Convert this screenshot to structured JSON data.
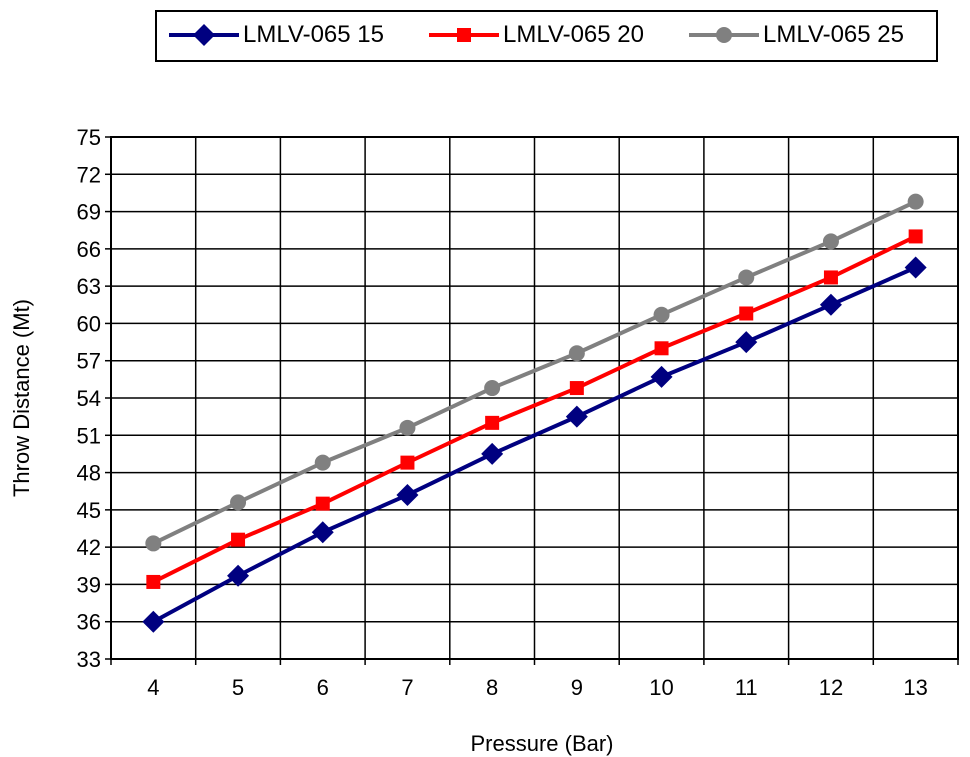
{
  "chart_data": {
    "type": "line",
    "title": "",
    "xlabel": "Pressure (Bar)",
    "ylabel": "Throw Distance (Mt)",
    "x": [
      4,
      5,
      6,
      7,
      8,
      9,
      10,
      11,
      12,
      13
    ],
    "xticks": [
      "4",
      "5",
      "6",
      "7",
      "8",
      "9",
      "10",
      "11",
      "12",
      "13"
    ],
    "ylim": [
      33,
      75
    ],
    "yticks": [
      "33",
      "36",
      "39",
      "42",
      "45",
      "48",
      "51",
      "54",
      "57",
      "60",
      "63",
      "66",
      "69",
      "72",
      "75"
    ],
    "grid": true,
    "legend_position": "top",
    "series": [
      {
        "name": "LMLV-065 15",
        "color": "#000080",
        "marker": "diamond",
        "values": [
          36.0,
          39.7,
          43.2,
          46.2,
          49.5,
          52.5,
          55.7,
          58.5,
          61.5,
          64.5
        ]
      },
      {
        "name": "LMLV-065 20",
        "color": "#ff0000",
        "marker": "square",
        "values": [
          39.2,
          42.6,
          45.5,
          48.8,
          52.0,
          54.8,
          58.0,
          60.8,
          63.7,
          67.0
        ]
      },
      {
        "name": "LMLV-065 25",
        "color": "#808080",
        "marker": "circle",
        "values": [
          42.3,
          45.6,
          48.8,
          51.6,
          54.8,
          57.6,
          60.7,
          63.7,
          66.6,
          69.8
        ]
      }
    ]
  }
}
